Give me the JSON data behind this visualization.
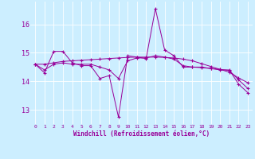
{
  "xlabel": "Windchill (Refroidissement éolien,°C)",
  "background_color": "#cceeff",
  "line_color": "#990099",
  "xlim": [
    -0.5,
    23.5
  ],
  "ylim": [
    12.5,
    16.8
  ],
  "yticks": [
    13,
    14,
    15,
    16
  ],
  "xticks": [
    0,
    1,
    2,
    3,
    4,
    5,
    6,
    7,
    8,
    9,
    10,
    11,
    12,
    13,
    14,
    15,
    16,
    17,
    18,
    19,
    20,
    21,
    22,
    23
  ],
  "series1": [
    14.6,
    14.3,
    15.05,
    15.05,
    14.65,
    14.55,
    14.55,
    14.1,
    14.2,
    12.75,
    14.9,
    14.85,
    14.8,
    16.55,
    15.1,
    14.9,
    14.5,
    14.5,
    14.5,
    14.45,
    14.4,
    14.4,
    13.9,
    13.6
  ],
  "series2": [
    14.6,
    14.6,
    14.65,
    14.7,
    14.72,
    14.74,
    14.76,
    14.78,
    14.8,
    14.82,
    14.84,
    14.85,
    14.85,
    14.85,
    14.84,
    14.82,
    14.78,
    14.72,
    14.62,
    14.52,
    14.42,
    14.32,
    14.12,
    13.95
  ],
  "series3": [
    14.6,
    14.4,
    14.6,
    14.65,
    14.6,
    14.6,
    14.6,
    14.5,
    14.4,
    14.1,
    14.72,
    14.82,
    14.82,
    14.9,
    14.85,
    14.78,
    14.55,
    14.5,
    14.48,
    14.45,
    14.42,
    14.38,
    14.05,
    13.75
  ]
}
